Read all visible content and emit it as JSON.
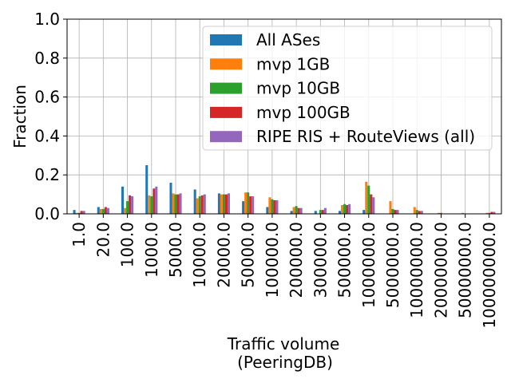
{
  "chart_data": {
    "type": "bar",
    "xlabel_line1": "Traffic volume",
    "xlabel_line2": "(PeeringDB)",
    "ylabel": "Fraction",
    "ylim": [
      0,
      1.0
    ],
    "yticks": [
      "0.0",
      "0.2",
      "0.4",
      "0.6",
      "0.8",
      "1.0"
    ],
    "grid": true,
    "legend_position": "upper right",
    "categories": [
      "1.0",
      "20.0",
      "100.0",
      "1000.0",
      "5000.0",
      "10000.0",
      "20000.0",
      "50000.0",
      "100000.0",
      "200000.0",
      "300000.0",
      "500000.0",
      "1000000.0",
      "5000000.0",
      "10000000.0",
      "20000000.0",
      "50000000.0",
      "100000000.0"
    ],
    "series": [
      {
        "name": "All ASes",
        "color": "#1f77b4",
        "values": [
          0.02,
          0.035,
          0.14,
          0.25,
          0.16,
          0.125,
          0.105,
          0.065,
          0.035,
          0.015,
          0.015,
          0.015,
          0.02,
          0.0,
          0.0,
          0.0,
          0.0,
          0.0
        ]
      },
      {
        "name": "mvp 1GB",
        "color": "#ff7f0e",
        "values": [
          0.005,
          0.025,
          0.03,
          0.095,
          0.105,
          0.08,
          0.1,
          0.11,
          0.085,
          0.035,
          0.0,
          0.045,
          0.165,
          0.065,
          0.035,
          0.005,
          0.005,
          0.005
        ]
      },
      {
        "name": "mvp 10GB",
        "color": "#2ca02c",
        "values": [
          0.005,
          0.025,
          0.065,
          0.09,
          0.1,
          0.09,
          0.1,
          0.11,
          0.075,
          0.04,
          0.02,
          0.05,
          0.145,
          0.025,
          0.02,
          0.005,
          0.0,
          0.005
        ]
      },
      {
        "name": "mvp 100GB",
        "color": "#d62728",
        "values": [
          0.015,
          0.035,
          0.095,
          0.13,
          0.1,
          0.095,
          0.1,
          0.09,
          0.07,
          0.03,
          0.02,
          0.045,
          0.1,
          0.02,
          0.015,
          0.0,
          0.0,
          0.01
        ]
      },
      {
        "name": "RIPE RIS + RouteViews (all)",
        "color": "#9467bd",
        "values": [
          0.015,
          0.03,
          0.09,
          0.14,
          0.105,
          0.1,
          0.105,
          0.09,
          0.07,
          0.03,
          0.03,
          0.05,
          0.085,
          0.02,
          0.015,
          0.0,
          0.0,
          0.01
        ]
      }
    ]
  }
}
